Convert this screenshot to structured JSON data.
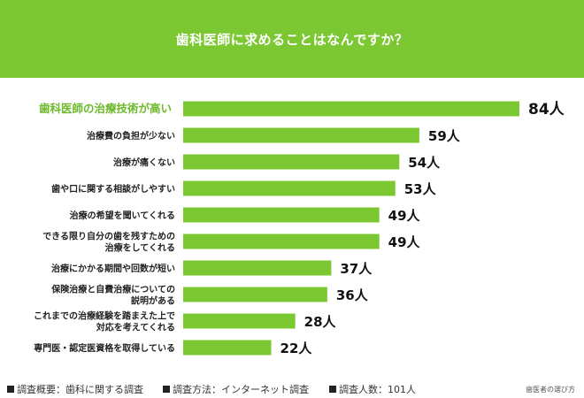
{
  "header": {
    "title": "歯科医師に求めることはなんですか？"
  },
  "colors": {
    "bar": "#7cc832",
    "highlight_label": "#6cba2a",
    "label": "#222222"
  },
  "chart_data": {
    "type": "bar",
    "orientation": "horizontal",
    "categories": [
      [
        "歯科医師の治療技術が高い"
      ],
      [
        "治療費の負担が少ない"
      ],
      [
        "治療が痛くない"
      ],
      [
        "歯や口に関する相談がしやすい"
      ],
      [
        "治療の希望を聞いてくれる"
      ],
      [
        "できる限り自分の歯を残すための",
        "治療をしてくれる"
      ],
      [
        "治療にかかる期間や回数が短い"
      ],
      [
        "保険治療と自費治療についての",
        "説明がある"
      ],
      [
        "これまでの治療経験を踏まえた上で",
        "対応を考えてくれる"
      ],
      [
        "専門医・認定医資格を取得している"
      ]
    ],
    "values": [
      84,
      59,
      54,
      53,
      49,
      49,
      37,
      36,
      28,
      22
    ],
    "value_labels": [
      "84人",
      "59人",
      "54人",
      "53人",
      "49人",
      "49人",
      "37人",
      "36人",
      "28人",
      "22人"
    ],
    "highlight_index": 0,
    "xlim": [
      0,
      84
    ]
  },
  "footer": {
    "survey_summary": "調査概要：歯科に関する調査",
    "survey_method": "調査方法：インターネット調査",
    "respondents": "調査人数：101人",
    "brand": "歯医者の選び方"
  }
}
